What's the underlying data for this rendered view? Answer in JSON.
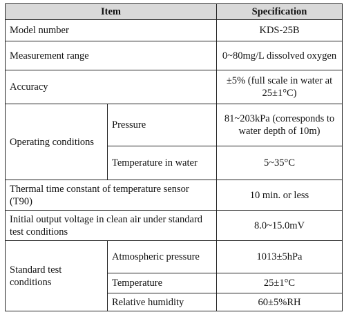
{
  "table": {
    "header": {
      "item": "Item",
      "specification": "Specification"
    },
    "rows": [
      {
        "item": "Model number",
        "spec": "KDS-25B"
      },
      {
        "item": "Measurement range",
        "spec": "0~80mg/L dissolved oxygen"
      },
      {
        "item": "Accuracy",
        "spec": "±5% (full scale in water at 25±1°C)"
      },
      {
        "group": "Operating conditions",
        "items": [
          {
            "item": "Pressure",
            "spec": "81~203kPa (corresponds to water depth of 10m)"
          },
          {
            "item": "Temperature in water",
            "spec": "5~35°C"
          }
        ]
      },
      {
        "item": "Thermal time constant of temperature sensor (T90)",
        "spec": "10 min. or less"
      },
      {
        "item": "Initial output voltage in clean air under standard test conditions",
        "spec": "8.0~15.0mV"
      },
      {
        "group": "Standard test conditions",
        "items": [
          {
            "item": "Atmospheric pressure",
            "spec": "1013±5hPa"
          },
          {
            "item": "Temperature",
            "spec": "25±1°C"
          },
          {
            "item": "Relative humidity",
            "spec": "60±5%RH"
          }
        ]
      }
    ]
  }
}
